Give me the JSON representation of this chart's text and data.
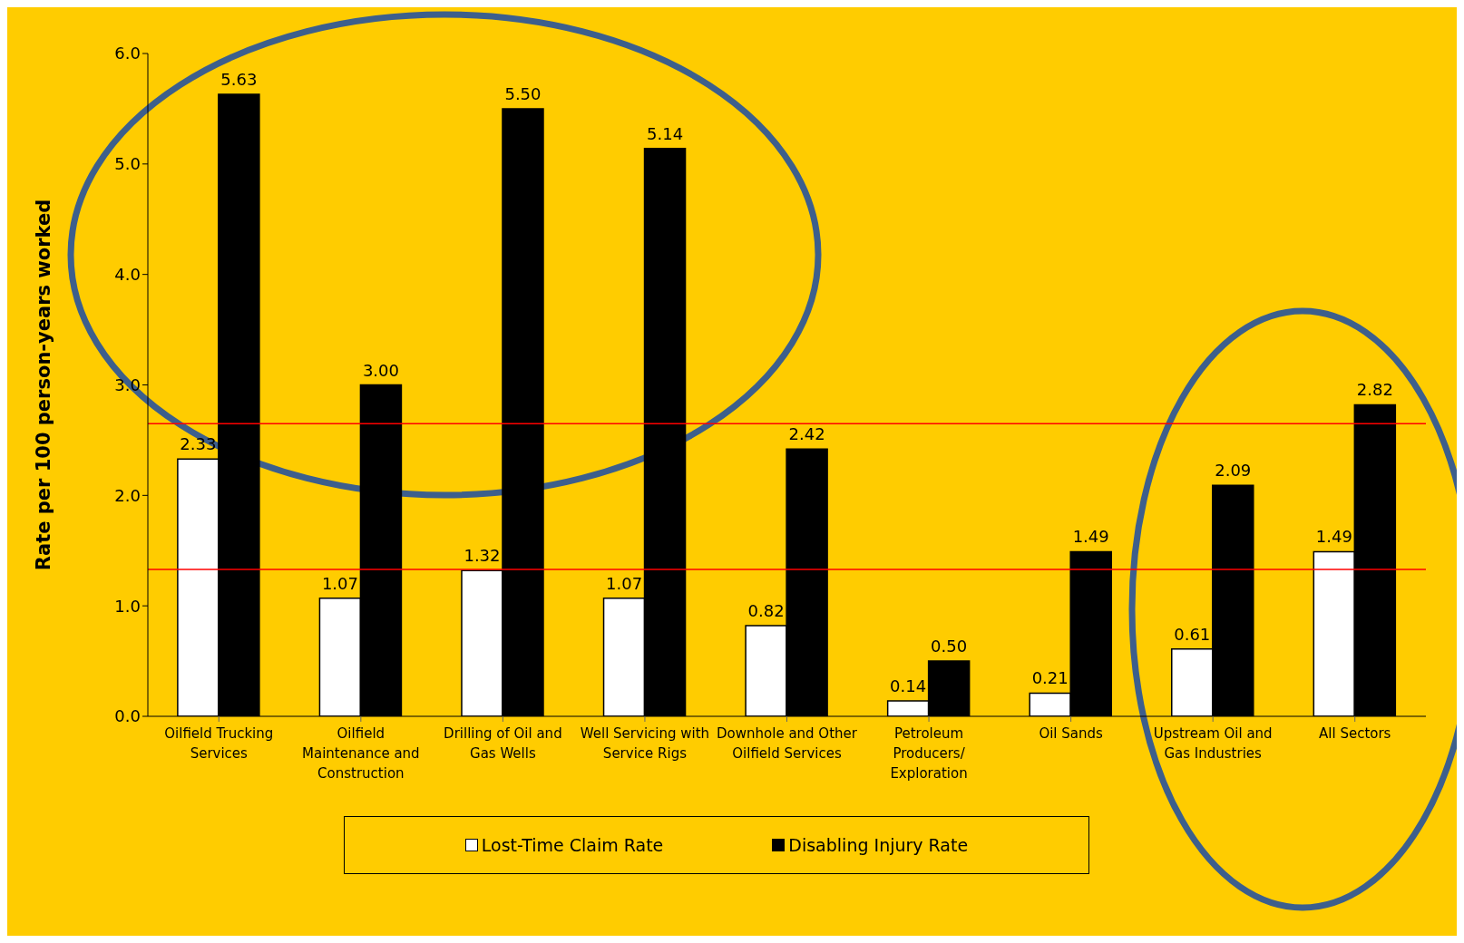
{
  "chart_data": {
    "type": "bar",
    "ylabel": "Rate per 100 person-years worked",
    "categories": [
      "Oilfield Trucking Services",
      "Oilfield Maintenance and Construction",
      "Drilling of Oil and Gas Wells",
      "Well Servicing with Service Rigs",
      "Downhole and Other Oilfield Services",
      "Petroleum Producers/ Exploration",
      "Oil Sands",
      "Upstream Oil and Gas Industries",
      "All Sectors"
    ],
    "series": [
      {
        "name": "Lost-Time Claim Rate",
        "color": "#ffffff",
        "values": [
          2.33,
          1.07,
          1.32,
          1.07,
          0.82,
          0.14,
          0.21,
          0.61,
          1.49
        ],
        "value_labels": [
          "2.33",
          "1.07",
          "1.32",
          "1.07",
          "0.82",
          "0.14",
          "0.21",
          "0.61",
          "1.49"
        ]
      },
      {
        "name": "Disabling Injury Rate",
        "color": "#000000",
        "values": [
          5.63,
          3.0,
          5.5,
          5.14,
          2.42,
          0.5,
          1.49,
          2.09,
          2.82
        ],
        "value_labels": [
          "5.63",
          "3.00",
          "5.50",
          "5.14",
          "2.42",
          "0.50",
          "1.49",
          "2.09",
          "2.82"
        ]
      }
    ],
    "ylim": [
      0,
      6
    ],
    "yticks": [
      {
        "value": 0,
        "label": "0.0"
      },
      {
        "value": 1,
        "label": "1.0"
      },
      {
        "value": 2,
        "label": "2.0"
      },
      {
        "value": 3,
        "label": "3.0"
      },
      {
        "value": 4,
        "label": "4.0"
      },
      {
        "value": 5,
        "label": "5.0"
      },
      {
        "value": 6,
        "label": "6.0"
      }
    ],
    "ref_lines": [
      {
        "axis": "y",
        "value": 2.65,
        "color": "#ff0000"
      },
      {
        "axis": "y",
        "value": 1.33,
        "color": "#ff0000"
      }
    ],
    "legend": "bottom",
    "grid": false
  }
}
